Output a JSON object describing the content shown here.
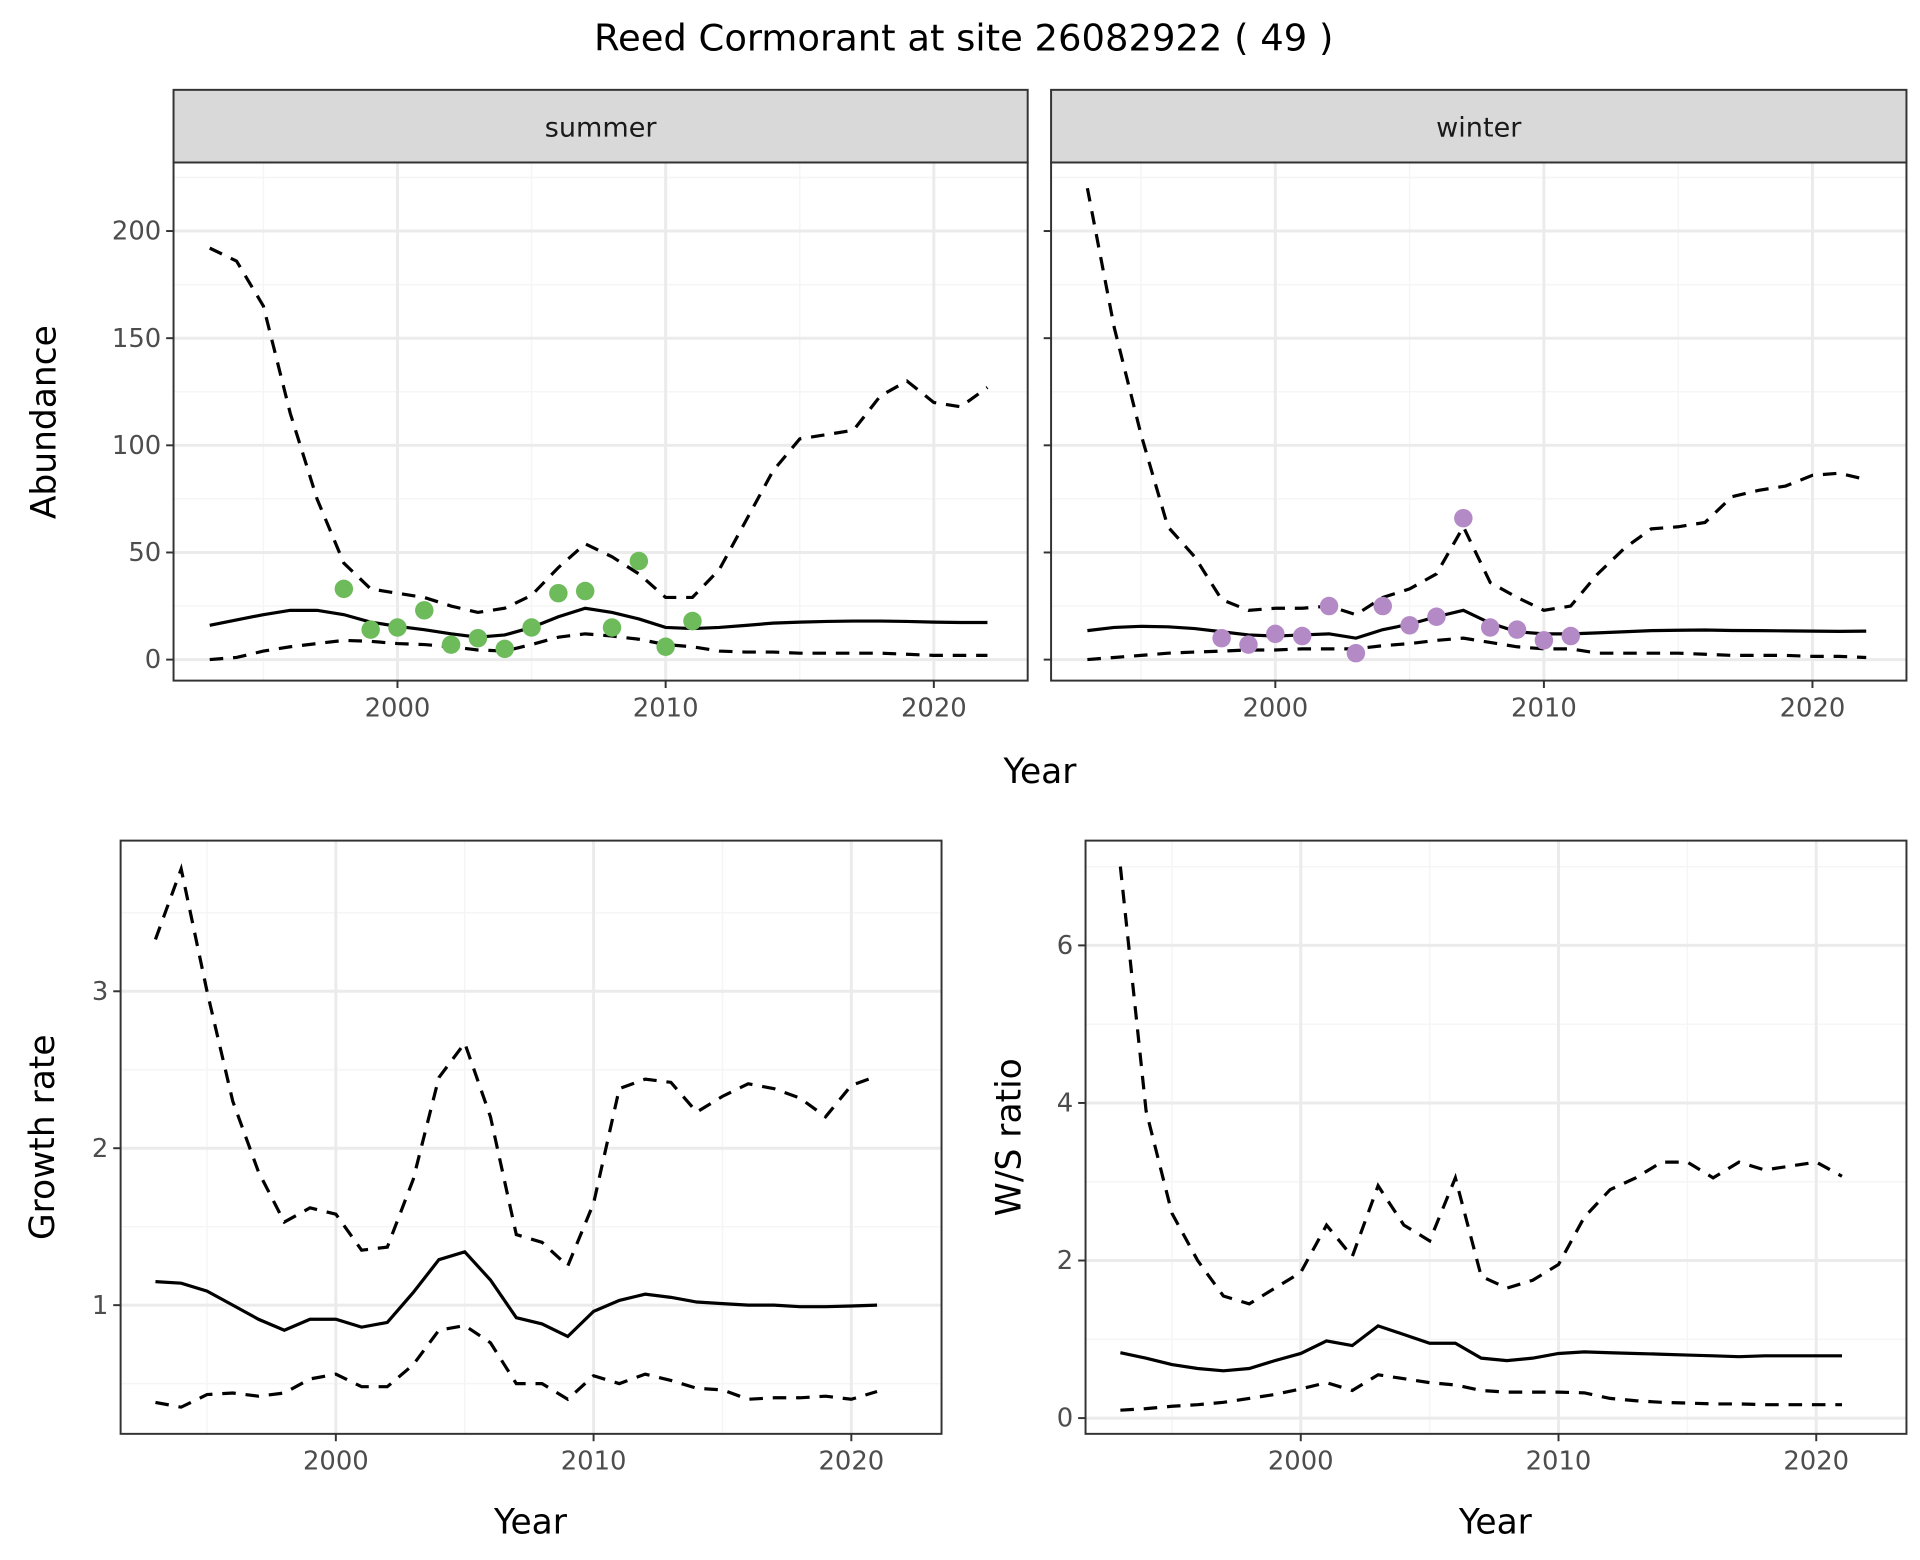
{
  "title": "Reed Cormorant at site 26082922 ( 49 )",
  "colors": {
    "summer_points": "#6dbb5b",
    "winter_points": "#b38ac6",
    "line": "#000000",
    "strip": "#d9d9d9",
    "grid_major": "#ebebeb",
    "grid_minor": "#f5f5f5"
  },
  "chart_data": [
    {
      "type": "line",
      "xlabel": "Year",
      "ylabel": "Abundance",
      "xlim": [
        1991.65,
        2023.5
      ],
      "ylim": [
        -9.8,
        232
      ],
      "x_ticks": [
        "2000",
        "2010",
        "2020"
      ],
      "y_ticks": [
        "0",
        "50",
        "100",
        "150",
        "200"
      ],
      "grid": true,
      "line_styles": {
        "mean": "solid",
        "upper": "dashed",
        "lower": "dashed"
      },
      "facets": [
        {
          "label": "summer",
          "years": [
            1993,
            1994,
            1995,
            1996,
            1997,
            1998,
            1999,
            2000,
            2001,
            2002,
            2003,
            2004,
            2005,
            2006,
            2007,
            2008,
            2009,
            2010,
            2011,
            2012,
            2013,
            2014,
            2015,
            2016,
            2017,
            2018,
            2019,
            2020,
            2021,
            2022
          ],
          "mean": [
            16,
            18.5,
            21,
            23,
            23,
            21,
            17.5,
            15.5,
            14,
            12,
            10.5,
            11.5,
            15,
            20,
            24,
            22,
            19,
            15,
            14.5,
            15,
            16,
            17,
            17.5,
            17.8,
            18,
            18,
            17.8,
            17.5,
            17.3,
            17.3
          ],
          "upper": [
            192,
            186,
            165,
            115,
            75,
            45,
            33,
            31,
            29,
            25,
            22,
            24,
            30,
            43,
            54,
            48,
            40,
            29,
            29,
            42,
            65,
            88,
            103,
            105,
            107,
            123,
            130,
            120,
            118,
            127
          ],
          "lower": [
            0,
            1,
            4,
            6,
            7.5,
            9,
            8.5,
            7.5,
            7,
            6,
            4.5,
            4,
            7,
            10.5,
            12,
            11,
            9.5,
            7,
            6,
            4,
            3.5,
            3.5,
            3,
            3,
            3,
            3,
            2.5,
            2,
            2,
            2
          ],
          "points": {
            "years": [
              1998,
              1999,
              2000,
              2001,
              2002,
              2003,
              2004,
              2005,
              2006,
              2007,
              2008,
              2009,
              2010,
              2011
            ],
            "values": [
              33,
              14,
              15,
              23,
              7,
              10,
              5,
              15,
              31,
              32,
              15,
              46,
              6,
              18
            ]
          }
        },
        {
          "label": "winter",
          "years": [
            1993,
            1994,
            1995,
            1996,
            1997,
            1998,
            1999,
            2000,
            2001,
            2002,
            2003,
            2004,
            2005,
            2006,
            2007,
            2008,
            2009,
            2010,
            2011,
            2012,
            2013,
            2014,
            2015,
            2016,
            2017,
            2018,
            2019,
            2020,
            2021,
            2022
          ],
          "mean": [
            13.5,
            15,
            15.5,
            15.3,
            14.5,
            13,
            11.5,
            11,
            11.5,
            12,
            10,
            14,
            16.5,
            20,
            23,
            17,
            13,
            12,
            12,
            12.5,
            13,
            13.5,
            13.7,
            13.8,
            13.6,
            13.5,
            13.4,
            13.3,
            13.2,
            13.3
          ],
          "upper": [
            220,
            155,
            105,
            62,
            48,
            28,
            23,
            24,
            24,
            25,
            21,
            29,
            33,
            40,
            62,
            36,
            29,
            23,
            25,
            40,
            52,
            61,
            62,
            64,
            76,
            79,
            81,
            86,
            87,
            84
          ],
          "lower": [
            0,
            1,
            2,
            3,
            3.5,
            4,
            4.5,
            4.5,
            5,
            5,
            5,
            6.5,
            7.5,
            9,
            10,
            8,
            6,
            5,
            5,
            3,
            3,
            3,
            3,
            2.5,
            2,
            2,
            2,
            1.5,
            1.5,
            1
          ],
          "points": {
            "years": [
              1998,
              1999,
              2000,
              2001,
              2002,
              2003,
              2004,
              2005,
              2006,
              2007,
              2008,
              2009,
              2010,
              2011
            ],
            "values": [
              10,
              7,
              12,
              11,
              25,
              3,
              25,
              16,
              20,
              66,
              15,
              14,
              9,
              11
            ]
          }
        }
      ]
    },
    {
      "type": "line",
      "xlabel": "Year",
      "ylabel": "Growth rate",
      "xlim": [
        1991.65,
        2023.5
      ],
      "ylim": [
        0.18,
        3.96
      ],
      "x_ticks": [
        "2000",
        "2010",
        "2020"
      ],
      "y_ticks": [
        "1",
        "2",
        "3"
      ],
      "grid": true,
      "years": [
        1993,
        1994,
        1995,
        1996,
        1997,
        1998,
        1999,
        2000,
        2001,
        2002,
        2003,
        2004,
        2005,
        2006,
        2007,
        2008,
        2009,
        2010,
        2011,
        2012,
        2013,
        2014,
        2015,
        2016,
        2017,
        2018,
        2019,
        2020,
        2021
      ],
      "mean": [
        1.15,
        1.14,
        1.09,
        1.0,
        0.91,
        0.84,
        0.91,
        0.91,
        0.86,
        0.89,
        1.08,
        1.29,
        1.34,
        1.16,
        0.92,
        0.88,
        0.8,
        0.96,
        1.03,
        1.07,
        1.05,
        1.02,
        1.01,
        1.0,
        1.0,
        0.99,
        0.99,
        0.995,
        1.0
      ],
      "upper": [
        3.33,
        3.78,
        3.0,
        2.3,
        1.85,
        1.53,
        1.62,
        1.58,
        1.35,
        1.37,
        1.8,
        2.45,
        2.67,
        2.2,
        1.45,
        1.4,
        1.25,
        1.65,
        2.38,
        2.44,
        2.42,
        2.23,
        2.33,
        2.41,
        2.38,
        2.32,
        2.2,
        2.4,
        2.46
      ],
      "lower": [
        0.38,
        0.35,
        0.43,
        0.44,
        0.42,
        0.44,
        0.53,
        0.56,
        0.48,
        0.48,
        0.62,
        0.84,
        0.87,
        0.76,
        0.5,
        0.5,
        0.4,
        0.55,
        0.5,
        0.56,
        0.52,
        0.47,
        0.46,
        0.4,
        0.41,
        0.41,
        0.42,
        0.4,
        0.45
      ]
    },
    {
      "type": "line",
      "xlabel": "Year",
      "ylabel": "W/S ratio",
      "xlim": [
        1991.65,
        2023.5
      ],
      "ylim": [
        -0.2,
        7.33
      ],
      "x_ticks": [
        "2000",
        "2010",
        "2020"
      ],
      "y_ticks": [
        "0",
        "2",
        "4",
        "6"
      ],
      "grid": true,
      "years": [
        1993,
        1994,
        1995,
        1996,
        1997,
        1998,
        1999,
        2000,
        2001,
        2002,
        2003,
        2004,
        2005,
        2006,
        2007,
        2008,
        2009,
        2010,
        2011,
        2012,
        2013,
        2014,
        2015,
        2016,
        2017,
        2018,
        2019,
        2020,
        2021
      ],
      "mean": [
        0.83,
        0.76,
        0.68,
        0.63,
        0.6,
        0.63,
        0.73,
        0.82,
        0.98,
        0.92,
        1.17,
        1.06,
        0.95,
        0.95,
        0.76,
        0.73,
        0.76,
        0.82,
        0.84,
        0.83,
        0.82,
        0.81,
        0.8,
        0.79,
        0.78,
        0.79,
        0.79,
        0.79,
        0.79
      ],
      "upper": [
        7.0,
        3.9,
        2.6,
        2.0,
        1.55,
        1.45,
        1.65,
        1.85,
        2.45,
        2.05,
        2.95,
        2.45,
        2.25,
        3.05,
        1.8,
        1.65,
        1.75,
        1.95,
        2.55,
        2.9,
        3.05,
        3.25,
        3.25,
        3.05,
        3.25,
        3.15,
        3.2,
        3.25,
        3.07
      ],
      "lower": [
        0.1,
        0.12,
        0.15,
        0.17,
        0.2,
        0.25,
        0.3,
        0.37,
        0.45,
        0.35,
        0.55,
        0.5,
        0.45,
        0.42,
        0.35,
        0.33,
        0.33,
        0.33,
        0.32,
        0.25,
        0.22,
        0.2,
        0.19,
        0.18,
        0.18,
        0.17,
        0.17,
        0.17,
        0.17
      ]
    }
  ]
}
